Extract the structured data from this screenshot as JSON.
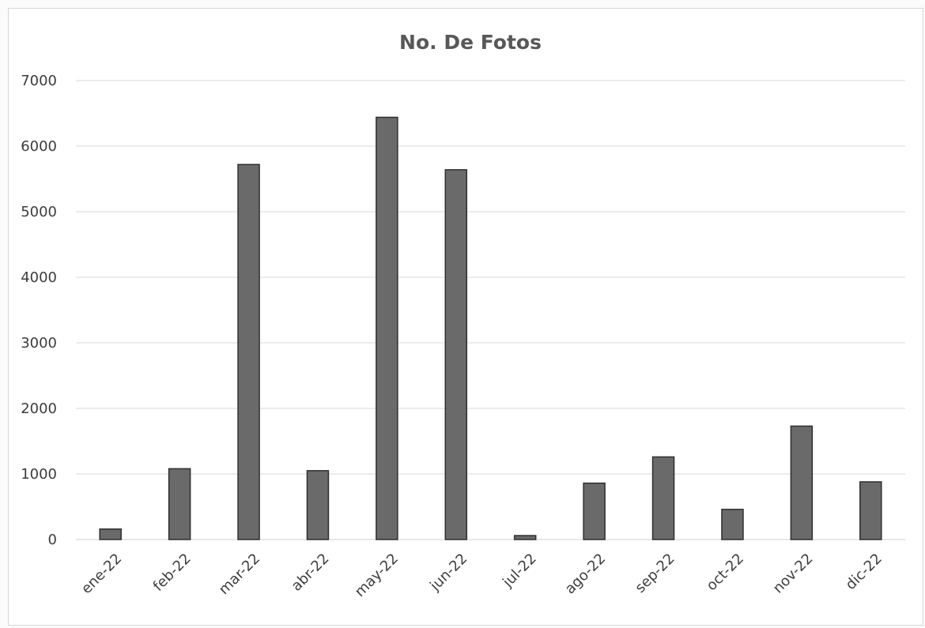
{
  "chart_data": {
    "type": "bar",
    "title": "No. De Fotos",
    "categories": [
      "ene-22",
      "feb-22",
      "mar-22",
      "abr-22",
      "may-22",
      "jun-22",
      "jul-22",
      "ago-22",
      "sep-22",
      "oct-22",
      "nov-22",
      "dic-22"
    ],
    "values": [
      160,
      1080,
      5720,
      1050,
      6440,
      5640,
      60,
      860,
      1260,
      460,
      1730,
      880
    ],
    "xlabel": "",
    "ylabel": "",
    "ylim": [
      0,
      7000
    ],
    "yticks": [
      "0",
      "1000",
      "2000",
      "3000",
      "4000",
      "5000",
      "6000",
      "7000"
    ],
    "grid": true,
    "legend": "none",
    "bar_color": "#6a6a6a"
  }
}
